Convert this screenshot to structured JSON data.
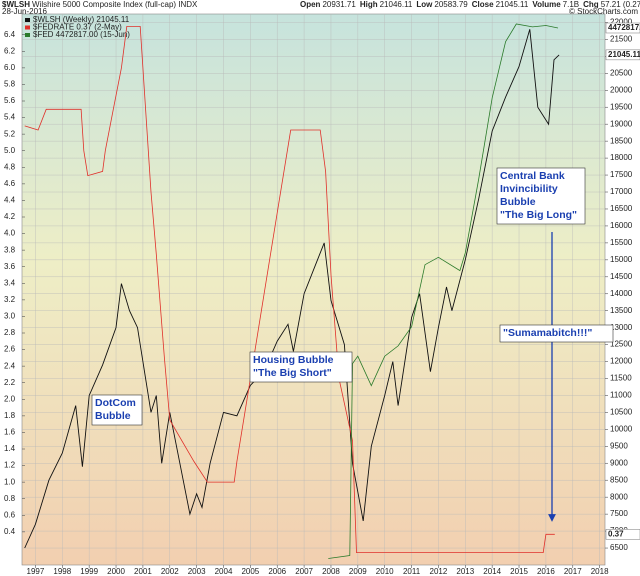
{
  "chart_data": {
    "type": "line",
    "title": "$WLSH",
    "subtitle": "Wilshire 5000 Composite Index (full-cap) INDX",
    "date": "28-Jun-2016",
    "quote": [
      [
        "Open",
        "20931.71"
      ],
      [
        "High",
        "21046.11"
      ],
      [
        "Low",
        "20583.79"
      ],
      [
        "Close",
        "21045.11"
      ],
      [
        "Volume",
        "7.1B"
      ],
      [
        "Chg",
        "57.21 (0.27%)"
      ]
    ],
    "credit": "© StockCharts.com",
    "xlim": [
      1996.5,
      2018.2
    ],
    "xticks": [
      1997,
      1998,
      1999,
      2000,
      2001,
      2002,
      2003,
      2004,
      2005,
      2006,
      2007,
      2008,
      2009,
      2010,
      2011,
      2012,
      2013,
      2014,
      2015,
      2016,
      2017,
      2018
    ],
    "ylim": [
      0,
      6.65
    ],
    "yticks": [
      0.4,
      0.6,
      0.8,
      1.0,
      1.2,
      1.4,
      1.6,
      1.8,
      2.0,
      2.2,
      2.4,
      2.6,
      2.8,
      3.0,
      3.2,
      3.4,
      3.6,
      3.8,
      4.0,
      4.2,
      4.4,
      4.6,
      4.8,
      5.0,
      5.2,
      5.4,
      5.6,
      5.8,
      6.0,
      6.2,
      6.4
    ],
    "y2lim": [
      6000,
      22250
    ],
    "y2ticks": [
      6500,
      7000,
      7500,
      8000,
      8500,
      9000,
      9500,
      10000,
      10500,
      11000,
      11500,
      12000,
      12500,
      13000,
      13500,
      14000,
      14500,
      15000,
      15500,
      16000,
      16500,
      17000,
      17500,
      18000,
      18500,
      19000,
      19500,
      20000,
      20500,
      21000,
      21500,
      22000
    ],
    "y3lim": [
      836000,
      4567600
    ],
    "grid": true,
    "series": [
      {
        "name": "$WLSH (Weekly) 21045.11",
        "color": "#111111",
        "axis": "y2",
        "x": [
          1996.6,
          1997.0,
          1997.5,
          1998.0,
          1998.5,
          1998.75,
          1999.0,
          1999.5,
          2000.0,
          2000.2,
          2000.5,
          2000.8,
          2001.0,
          2001.3,
          2001.5,
          2001.7,
          2002.0,
          2002.5,
          2002.75,
          2003.0,
          2003.2,
          2003.5,
          2004.0,
          2004.5,
          2005.0,
          2005.5,
          2006.0,
          2006.4,
          2006.6,
          2007.0,
          2007.5,
          2007.75,
          2008.0,
          2008.5,
          2008.8,
          2009.2,
          2009.5,
          2010.0,
          2010.3,
          2010.5,
          2011.0,
          2011.3,
          2011.7,
          2012.0,
          2012.3,
          2012.5,
          2013.0,
          2013.5,
          2014.0,
          2014.5,
          2015.0,
          2015.4,
          2015.7,
          2016.1,
          2016.3,
          2016.49
        ],
        "values": [
          6500,
          7200,
          8500,
          9300,
          10700,
          8900,
          11000,
          11900,
          13000,
          14300,
          13500,
          13000,
          12000,
          10500,
          11000,
          9000,
          10500,
          8500,
          7500,
          8100,
          7700,
          9000,
          10500,
          10400,
          11300,
          11700,
          12600,
          13100,
          12300,
          14000,
          15000,
          15500,
          13800,
          12500,
          9000,
          7300,
          9500,
          11000,
          12000,
          10700,
          13300,
          14000,
          11700,
          13000,
          14200,
          13500,
          15000,
          16800,
          18800,
          19800,
          20700,
          21800,
          19500,
          19000,
          20900,
          21045.11
        ]
      },
      {
        "name": "$FEDRATE 0.37 (2-May)",
        "color": "#e0302a",
        "axis": "y",
        "x": [
          1996.6,
          1997.1,
          1997.4,
          1998.0,
          1998.7,
          1998.8,
          1998.95,
          1999.5,
          1999.6,
          1999.9,
          2000.2,
          2000.4,
          2000.9,
          2001.0,
          2001.3,
          2001.5,
          2001.8,
          2002.0,
          2002.9,
          2003.4,
          2004.4,
          2004.5,
          2005.0,
          2005.5,
          2006.0,
          2006.5,
          2007.6,
          2007.8,
          2008.0,
          2008.3,
          2008.8,
          2008.95,
          2009.5,
          2015.9,
          2016.0,
          2016.33
        ],
        "values": [
          5.3,
          5.25,
          5.5,
          5.5,
          5.5,
          5.0,
          4.7,
          4.75,
          5.0,
          5.5,
          6.0,
          6.5,
          6.5,
          6.0,
          4.5,
          3.75,
          2.5,
          1.75,
          1.25,
          1.0,
          1.0,
          1.25,
          2.25,
          3.25,
          4.25,
          5.25,
          5.25,
          4.75,
          3.5,
          2.25,
          1.5,
          0.15,
          0.15,
          0.15,
          0.37,
          0.37
        ]
      },
      {
        "name": "$FED 4472817.00 (15-Jun)",
        "color": "#2a7a2a",
        "axis": "y3",
        "x": [
          2007.9,
          2008.7,
          2008.8,
          2009.0,
          2009.5,
          2010.0,
          2010.5,
          2011.0,
          2011.5,
          2012.0,
          2012.8,
          2013.0,
          2013.5,
          2014.0,
          2014.5,
          2014.9,
          2015.5,
          2016.0,
          2016.45
        ],
        "values": [
          880000,
          900000,
          2200000,
          2250000,
          2050000,
          2250000,
          2320000,
          2450000,
          2870000,
          2920000,
          2830000,
          2950000,
          3450000,
          4000000,
          4380000,
          4500000,
          4480000,
          4490000,
          4472817
        ],
        "value_labels": [
          null,
          null,
          null,
          null,
          null,
          null,
          null,
          null,
          null,
          null,
          null,
          null,
          null,
          null,
          null,
          null,
          null,
          null,
          "4472817.0"
        ]
      }
    ],
    "annotations": [
      {
        "lines": [
          "DotCom",
          "Bubble"
        ]
      },
      {
        "lines": [
          "Housing Bubble",
          "\"The Big Short\""
        ]
      },
      {
        "lines": [
          "Central Bank",
          "Invincibility",
          "Bubble",
          "\"The Big Long\""
        ]
      },
      {
        "lines": [
          "\"Sumamabitch!!!\""
        ]
      }
    ]
  }
}
